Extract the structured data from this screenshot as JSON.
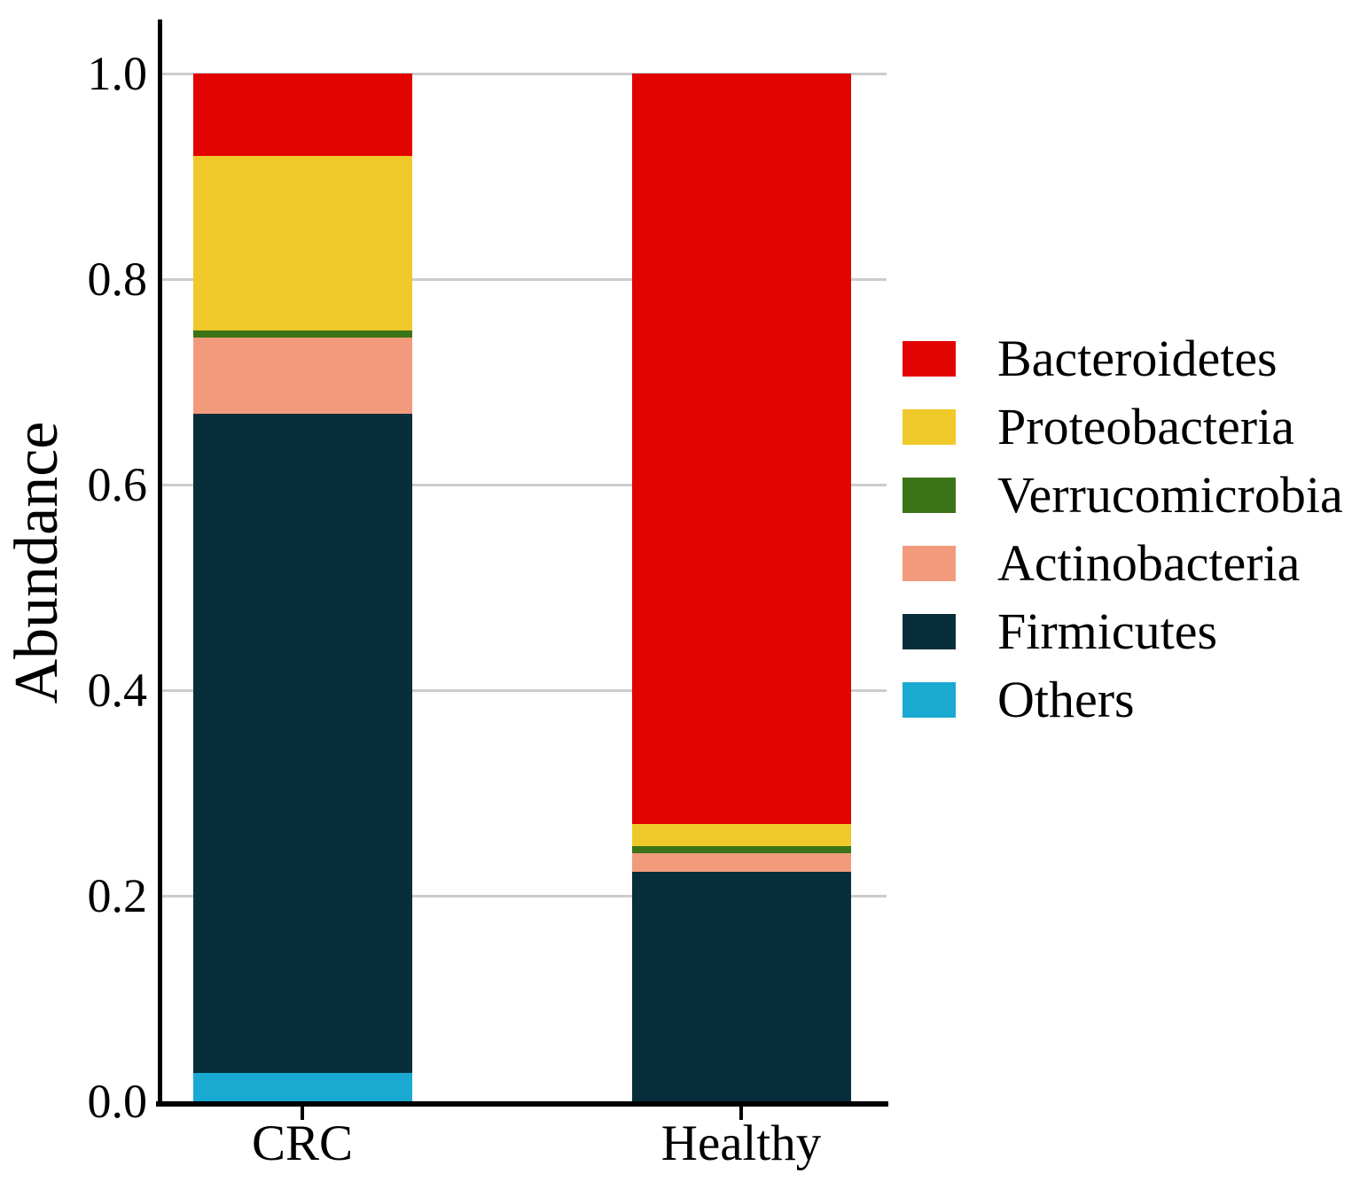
{
  "chart_data": {
    "type": "bar",
    "stacked": true,
    "title": "",
    "xlabel": "",
    "ylabel": "Abundance",
    "ylim": [
      0.0,
      1.0
    ],
    "grid": true,
    "legend_position": "right",
    "categories": [
      "CRC",
      "Healthy"
    ],
    "yticks": [
      {
        "label": "0.0",
        "value": 0.0
      },
      {
        "label": "0.2",
        "value": 0.2
      },
      {
        "label": "0.4",
        "value": 0.4
      },
      {
        "label": "0.6",
        "value": 0.6
      },
      {
        "label": "0.8",
        "value": 0.8
      },
      {
        "label": "1.0",
        "value": 1.0
      }
    ],
    "series": [
      {
        "name": "Bacteroidetes",
        "color": "#e20400",
        "values": [
          0.08,
          0.73
        ]
      },
      {
        "name": "Proteobacteria",
        "color": "#efc929",
        "values": [
          0.17,
          0.022
        ]
      },
      {
        "name": "Verrucomicrobia",
        "color": "#3b7317",
        "values": [
          0.007,
          0.007
        ]
      },
      {
        "name": "Actinobacteria",
        "color": "#f29b7c",
        "values": [
          0.074,
          0.018
        ]
      },
      {
        "name": "Firmicutes",
        "color": "#072e3a",
        "values": [
          0.641,
          0.223
        ]
      },
      {
        "name": "Others",
        "color": "#19a9d1",
        "values": [
          0.028,
          0.0
        ]
      }
    ],
    "stack_order_note": "series listed top-of-stack first; bars stack bottom-to-top in reverse order",
    "axis_color": "#000000",
    "gridline_color": "#cccccc",
    "background_color": "#ffffff"
  }
}
